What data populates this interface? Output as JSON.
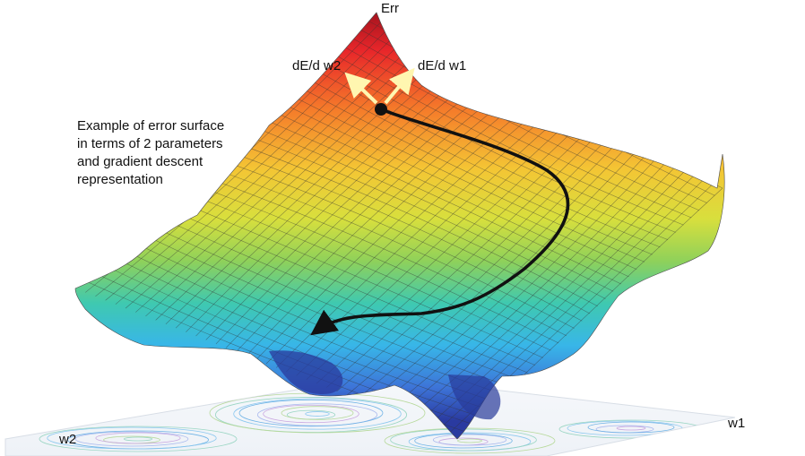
{
  "labels": {
    "z_axis": "Err",
    "gradient_w2": "dE/d w2",
    "gradient_w1": "dE/d w1",
    "axis_w1": "w1",
    "axis_w2": "w2"
  },
  "caption": {
    "lines": [
      "Example of error surface",
      "in terms of 2 parameters",
      "and gradient descent",
      "representation"
    ]
  },
  "colors": {
    "gradient_arrows": "#fff6b0",
    "descent_path": "#111111",
    "contours": "#7fb8e8"
  }
}
